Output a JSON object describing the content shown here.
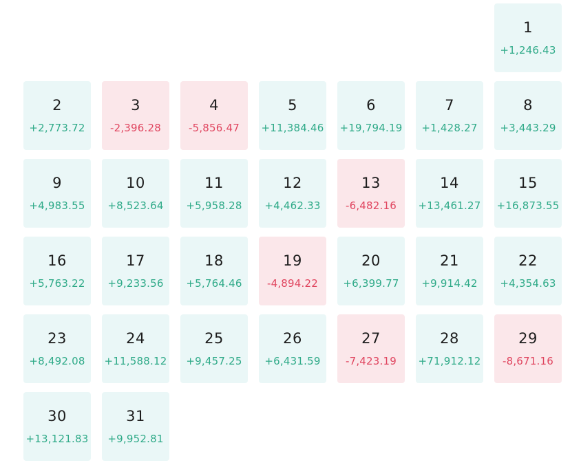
{
  "calendar": {
    "leading_blank_cells": 6,
    "colors": {
      "gain_background": "#eaf7f7",
      "loss_background": "#fbe7ea",
      "gain_text": "#2faa88",
      "loss_text": "#e0455f"
    },
    "days": [
      {
        "day": "1",
        "value": "+1,246.43",
        "trend": "gain"
      },
      {
        "day": "2",
        "value": "+2,773.72",
        "trend": "gain"
      },
      {
        "day": "3",
        "value": "-2,396.28",
        "trend": "loss"
      },
      {
        "day": "4",
        "value": "-5,856.47",
        "trend": "loss"
      },
      {
        "day": "5",
        "value": "+11,384.46",
        "trend": "gain"
      },
      {
        "day": "6",
        "value": "+19,794.19",
        "trend": "gain"
      },
      {
        "day": "7",
        "value": "+1,428.27",
        "trend": "gain"
      },
      {
        "day": "8",
        "value": "+3,443.29",
        "trend": "gain"
      },
      {
        "day": "9",
        "value": "+4,983.55",
        "trend": "gain"
      },
      {
        "day": "10",
        "value": "+8,523.64",
        "trend": "gain"
      },
      {
        "day": "11",
        "value": "+5,958.28",
        "trend": "gain"
      },
      {
        "day": "12",
        "value": "+4,462.33",
        "trend": "gain"
      },
      {
        "day": "13",
        "value": "-6,482.16",
        "trend": "loss"
      },
      {
        "day": "14",
        "value": "+13,461.27",
        "trend": "gain"
      },
      {
        "day": "15",
        "value": "+16,873.55",
        "trend": "gain"
      },
      {
        "day": "16",
        "value": "+5,763.22",
        "trend": "gain"
      },
      {
        "day": "17",
        "value": "+9,233.56",
        "trend": "gain"
      },
      {
        "day": "18",
        "value": "+5,764.46",
        "trend": "gain"
      },
      {
        "day": "19",
        "value": "-4,894.22",
        "trend": "loss"
      },
      {
        "day": "20",
        "value": "+6,399.77",
        "trend": "gain"
      },
      {
        "day": "21",
        "value": "+9,914.42",
        "trend": "gain"
      },
      {
        "day": "22",
        "value": "+4,354.63",
        "trend": "gain"
      },
      {
        "day": "23",
        "value": "+8,492.08",
        "trend": "gain"
      },
      {
        "day": "24",
        "value": "+11,588.12",
        "trend": "gain"
      },
      {
        "day": "25",
        "value": "+9,457.25",
        "trend": "gain"
      },
      {
        "day": "26",
        "value": "+6,431.59",
        "trend": "gain"
      },
      {
        "day": "27",
        "value": "-7,423.19",
        "trend": "loss"
      },
      {
        "day": "28",
        "value": "+71,912.12",
        "trend": "gain"
      },
      {
        "day": "29",
        "value": "-8,671.16",
        "trend": "loss"
      },
      {
        "day": "30",
        "value": "+13,121.83",
        "trend": "gain"
      },
      {
        "day": "31",
        "value": "+9,952.81",
        "trend": "gain"
      }
    ]
  }
}
